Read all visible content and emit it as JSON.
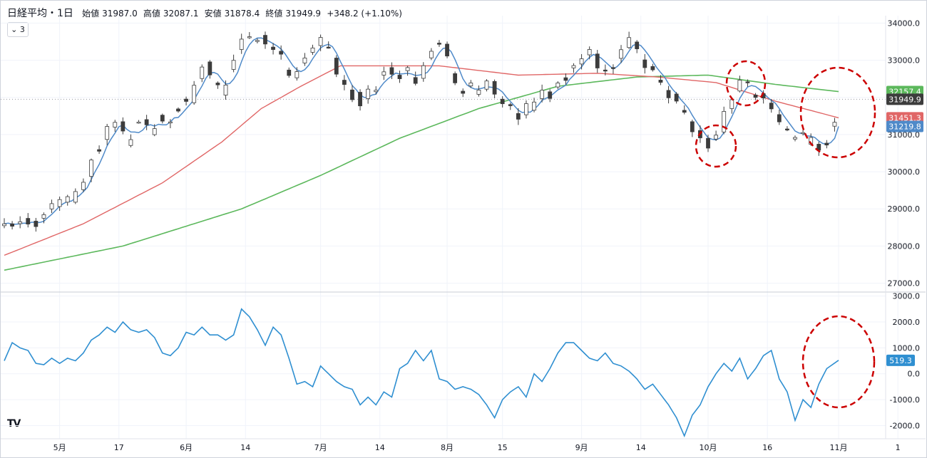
{
  "header": {
    "symbol": "日経平均・1日",
    "open_label": "始値",
    "open": "31987.0",
    "high_label": "高値",
    "high": "32087.1",
    "low_label": "安値",
    "low": "31878.4",
    "close_label": "終値",
    "close": "31949.9",
    "change": "+348.2 (+1.10%)"
  },
  "collapse_label": "3",
  "logo_text": "TV",
  "colors": {
    "up_fill": "#ffffff",
    "down_fill": "#3c3c3c",
    "candle_border": "#3c3c3c",
    "ma_short": "#4f8ac9",
    "ma_mid": "#e06666",
    "ma_long": "#5cb85c",
    "oscillator": "#2f8fd1",
    "annotation": "#cc0000"
  },
  "chart_data": [
    {
      "type": "candlestick",
      "title": "日経平均・1日",
      "ylim": [
        26800,
        34200
      ],
      "y_ticks": [
        "34000.0",
        "33000.0",
        "32000.0",
        "31000.0",
        "30000.0",
        "29000.0",
        "28000.0",
        "27000.0"
      ],
      "x_tick_labels": [
        "5月",
        "17",
        "6月",
        "14",
        "7月",
        "14",
        "8月",
        "15",
        "9月",
        "14",
        "10月",
        "16",
        "11月",
        "1"
      ],
      "x_tick_index": [
        14,
        29,
        46,
        61,
        80,
        95,
        112,
        126,
        146,
        161,
        178,
        193,
        211,
        226
      ],
      "grid": true,
      "last_price_line": 31949.9,
      "price_labels": [
        {
          "name": "MA long",
          "value": "32157.4",
          "color": "#5cb85c"
        },
        {
          "name": "last",
          "value": "31949.9",
          "color": "#3c3c3c"
        },
        {
          "name": "MA mid",
          "value": "31451.3",
          "color": "#e06666"
        },
        {
          "name": "MA short",
          "value": "31219.8",
          "color": "#4f8ac9"
        }
      ],
      "close_anchors": [
        [
          0,
          28600
        ],
        [
          3,
          28650
        ],
        [
          6,
          28700
        ],
        [
          8,
          28500
        ],
        [
          10,
          28900
        ],
        [
          12,
          29100
        ],
        [
          14,
          29250
        ],
        [
          17,
          29300
        ],
        [
          19,
          29600
        ],
        [
          21,
          30000
        ],
        [
          23,
          30400
        ],
        [
          25,
          30900
        ],
        [
          27,
          31300
        ],
        [
          29,
          31400
        ],
        [
          31,
          30700
        ],
        [
          33,
          31200
        ],
        [
          35,
          31500
        ],
        [
          37,
          31000
        ],
        [
          39,
          31500
        ],
        [
          41,
          31300
        ],
        [
          43,
          31600
        ],
        [
          45,
          31800
        ],
        [
          47,
          32000
        ],
        [
          49,
          32600
        ],
        [
          51,
          32900
        ],
        [
          53,
          32500
        ],
        [
          55,
          32200
        ],
        [
          57,
          32700
        ],
        [
          59,
          33200
        ],
        [
          61,
          33700
        ],
        [
          63,
          33600
        ],
        [
          65,
          33500
        ],
        [
          67,
          33400
        ],
        [
          69,
          33300
        ],
        [
          71,
          32900
        ],
        [
          73,
          32400
        ],
        [
          75,
          32800
        ],
        [
          77,
          33100
        ],
        [
          80,
          33600
        ],
        [
          82,
          33400
        ],
        [
          84,
          32700
        ],
        [
          86,
          32300
        ],
        [
          88,
          32000
        ],
        [
          90,
          31900
        ],
        [
          92,
          32200
        ],
        [
          94,
          32300
        ],
        [
          96,
          32700
        ],
        [
          98,
          32600
        ],
        [
          100,
          32600
        ],
        [
          102,
          32700
        ],
        [
          104,
          32500
        ],
        [
          106,
          32800
        ],
        [
          108,
          33200
        ],
        [
          110,
          33500
        ],
        [
          112,
          33200
        ],
        [
          114,
          32500
        ],
        [
          116,
          32100
        ],
        [
          118,
          32300
        ],
        [
          120,
          32200
        ],
        [
          122,
          32500
        ],
        [
          124,
          32200
        ],
        [
          126,
          31900
        ],
        [
          128,
          31700
        ],
        [
          130,
          31500
        ],
        [
          132,
          31800
        ],
        [
          134,
          31900
        ],
        [
          136,
          32200
        ],
        [
          138,
          32100
        ],
        [
          140,
          32400
        ],
        [
          142,
          32500
        ],
        [
          144,
          32800
        ],
        [
          146,
          33100
        ],
        [
          148,
          33400
        ],
        [
          150,
          32900
        ],
        [
          152,
          32800
        ],
        [
          154,
          32900
        ],
        [
          156,
          33300
        ],
        [
          158,
          33600
        ],
        [
          160,
          33300
        ],
        [
          162,
          32900
        ],
        [
          164,
          32700
        ],
        [
          166,
          32300
        ],
        [
          168,
          32000
        ],
        [
          170,
          31800
        ],
        [
          172,
          31600
        ],
        [
          174,
          31000
        ],
        [
          176,
          30900
        ],
        [
          178,
          30600
        ],
        [
          180,
          31000
        ],
        [
          182,
          31500
        ],
        [
          184,
          31900
        ],
        [
          186,
          32400
        ],
        [
          188,
          32400
        ],
        [
          190,
          31900
        ],
        [
          192,
          32100
        ],
        [
          194,
          31700
        ],
        [
          196,
          31300
        ],
        [
          198,
          31100
        ],
        [
          200,
          31000
        ],
        [
          202,
          31100
        ],
        [
          204,
          30800
        ],
        [
          206,
          30700
        ],
        [
          208,
          30800
        ],
        [
          210,
          31400
        ],
        [
          211,
          31950
        ]
      ],
      "annotations": [
        "circle",
        "circle",
        "circle"
      ]
    },
    {
      "type": "line",
      "ylim": [
        -2400,
        3100
      ],
      "y_ticks": [
        "3000.0",
        "2000.0",
        "1000.0",
        "0.0",
        "-1000.0",
        "-2000.0"
      ],
      "last_value_label": "519.3",
      "values_anchors": [
        [
          0,
          500
        ],
        [
          2,
          1200
        ],
        [
          4,
          1000
        ],
        [
          6,
          900
        ],
        [
          8,
          400
        ],
        [
          10,
          350
        ],
        [
          12,
          600
        ],
        [
          14,
          400
        ],
        [
          16,
          600
        ],
        [
          18,
          500
        ],
        [
          20,
          800
        ],
        [
          22,
          1300
        ],
        [
          24,
          1500
        ],
        [
          26,
          1800
        ],
        [
          28,
          1600
        ],
        [
          30,
          2000
        ],
        [
          32,
          1700
        ],
        [
          34,
          1600
        ],
        [
          36,
          1700
        ],
        [
          38,
          1400
        ],
        [
          40,
          800
        ],
        [
          42,
          700
        ],
        [
          44,
          1000
        ],
        [
          46,
          1600
        ],
        [
          48,
          1500
        ],
        [
          50,
          1800
        ],
        [
          52,
          1500
        ],
        [
          54,
          1500
        ],
        [
          56,
          1300
        ],
        [
          58,
          1500
        ],
        [
          60,
          2500
        ],
        [
          62,
          2200
        ],
        [
          64,
          1700
        ],
        [
          66,
          1100
        ],
        [
          68,
          1800
        ],
        [
          70,
          1500
        ],
        [
          72,
          600
        ],
        [
          74,
          -400
        ],
        [
          76,
          -300
        ],
        [
          78,
          -500
        ],
        [
          80,
          300
        ],
        [
          82,
          0
        ],
        [
          84,
          -300
        ],
        [
          86,
          -500
        ],
        [
          88,
          -600
        ],
        [
          90,
          -1200
        ],
        [
          92,
          -900
        ],
        [
          94,
          -1200
        ],
        [
          96,
          -700
        ],
        [
          98,
          -900
        ],
        [
          100,
          200
        ],
        [
          102,
          400
        ],
        [
          104,
          900
        ],
        [
          106,
          500
        ],
        [
          108,
          900
        ],
        [
          110,
          -200
        ],
        [
          112,
          -300
        ],
        [
          114,
          -600
        ],
        [
          116,
          -500
        ],
        [
          118,
          -600
        ],
        [
          120,
          -800
        ],
        [
          122,
          -1200
        ],
        [
          124,
          -1700
        ],
        [
          126,
          -1000
        ],
        [
          128,
          -700
        ],
        [
          130,
          -500
        ],
        [
          132,
          -900
        ],
        [
          134,
          0
        ],
        [
          136,
          -300
        ],
        [
          138,
          200
        ],
        [
          140,
          800
        ],
        [
          142,
          1200
        ],
        [
          144,
          1200
        ],
        [
          146,
          900
        ],
        [
          148,
          600
        ],
        [
          150,
          500
        ],
        [
          152,
          800
        ],
        [
          154,
          400
        ],
        [
          156,
          300
        ],
        [
          158,
          100
        ],
        [
          160,
          -200
        ],
        [
          162,
          -600
        ],
        [
          164,
          -400
        ],
        [
          166,
          -800
        ],
        [
          168,
          -1200
        ],
        [
          170,
          -1700
        ],
        [
          172,
          -2400
        ],
        [
          174,
          -1600
        ],
        [
          176,
          -1200
        ],
        [
          178,
          -500
        ],
        [
          180,
          0
        ],
        [
          182,
          400
        ],
        [
          184,
          100
        ],
        [
          186,
          600
        ],
        [
          188,
          -200
        ],
        [
          190,
          200
        ],
        [
          192,
          700
        ],
        [
          194,
          900
        ],
        [
          196,
          -200
        ],
        [
          198,
          -700
        ],
        [
          200,
          -1800
        ],
        [
          202,
          -1000
        ],
        [
          204,
          -1300
        ],
        [
          206,
          -400
        ],
        [
          208,
          200
        ],
        [
          211,
          519.3
        ]
      ]
    }
  ]
}
